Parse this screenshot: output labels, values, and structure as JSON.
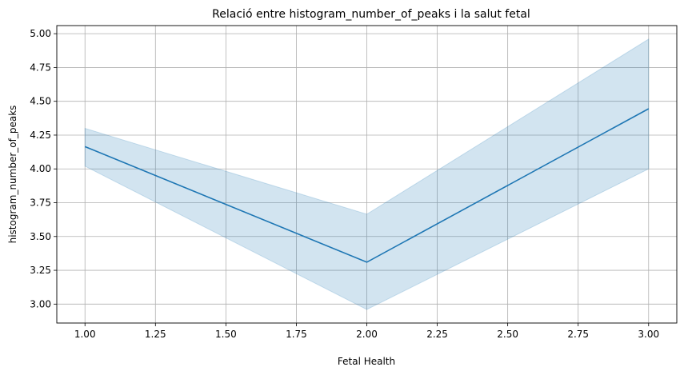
{
  "chart_data": {
    "type": "line",
    "title": "Relació entre histogram_number_of_peaks i la salut fetal",
    "xlabel": "Fetal Health",
    "ylabel": "histogram_number_of_peaks",
    "x": [
      1.0,
      2.0,
      3.0
    ],
    "series": [
      {
        "values": [
          4.165,
          3.31,
          4.445
        ],
        "ci_lower": [
          4.02,
          2.96,
          4.0
        ],
        "ci_upper": [
          4.3,
          3.665,
          4.96
        ]
      }
    ],
    "xlim": [
      0.9,
      3.1
    ],
    "ylim": [
      2.86,
      5.06
    ],
    "xticks": [
      "1.00",
      "1.25",
      "1.50",
      "1.75",
      "2.00",
      "2.25",
      "2.50",
      "2.75",
      "3.00"
    ],
    "yticks": [
      "3.00",
      "3.25",
      "3.50",
      "3.75",
      "4.00",
      "4.25",
      "4.50",
      "4.75",
      "5.00"
    ],
    "grid": true,
    "legend": "none",
    "colors": {
      "line": "#1f77b4",
      "band": "#1f77b4",
      "grid": "#b0b0b0"
    }
  }
}
